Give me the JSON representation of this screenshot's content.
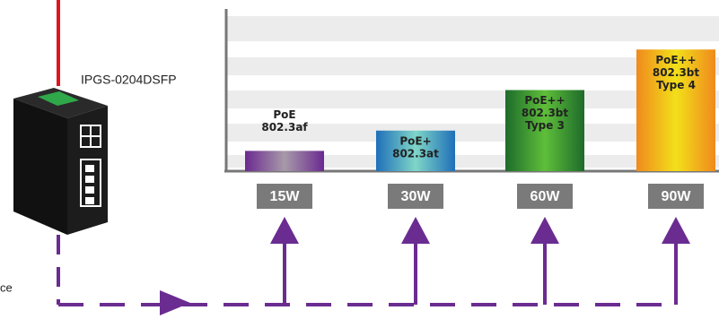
{
  "device": {
    "label": "IPGS-0204DSFP"
  },
  "side_text": "ce",
  "chart_data": {
    "type": "bar",
    "categories": [
      [
        "PoE",
        "802.3af"
      ],
      [
        "PoE+",
        "802.3at"
      ],
      [
        "PoE++",
        "802.3bt",
        "Type 3"
      ],
      [
        "PoE++",
        "802.3bt",
        "Type 4"
      ]
    ],
    "values": [
      15,
      30,
      60,
      90
    ],
    "value_labels": [
      "15W",
      "30W",
      "60W",
      "90W"
    ],
    "colors": [
      [
        "#6b2a90",
        "#a79aa8",
        "#6b2a90"
      ],
      [
        "#1f6fb8",
        "#7fd6c8",
        "#1f6fb8"
      ],
      [
        "#1d6b2a",
        "#5fbf3a",
        "#1d6b2a"
      ],
      [
        "#f08a1c",
        "#f2e01a",
        "#f08a1c"
      ]
    ],
    "ylim": [
      0,
      120
    ]
  }
}
